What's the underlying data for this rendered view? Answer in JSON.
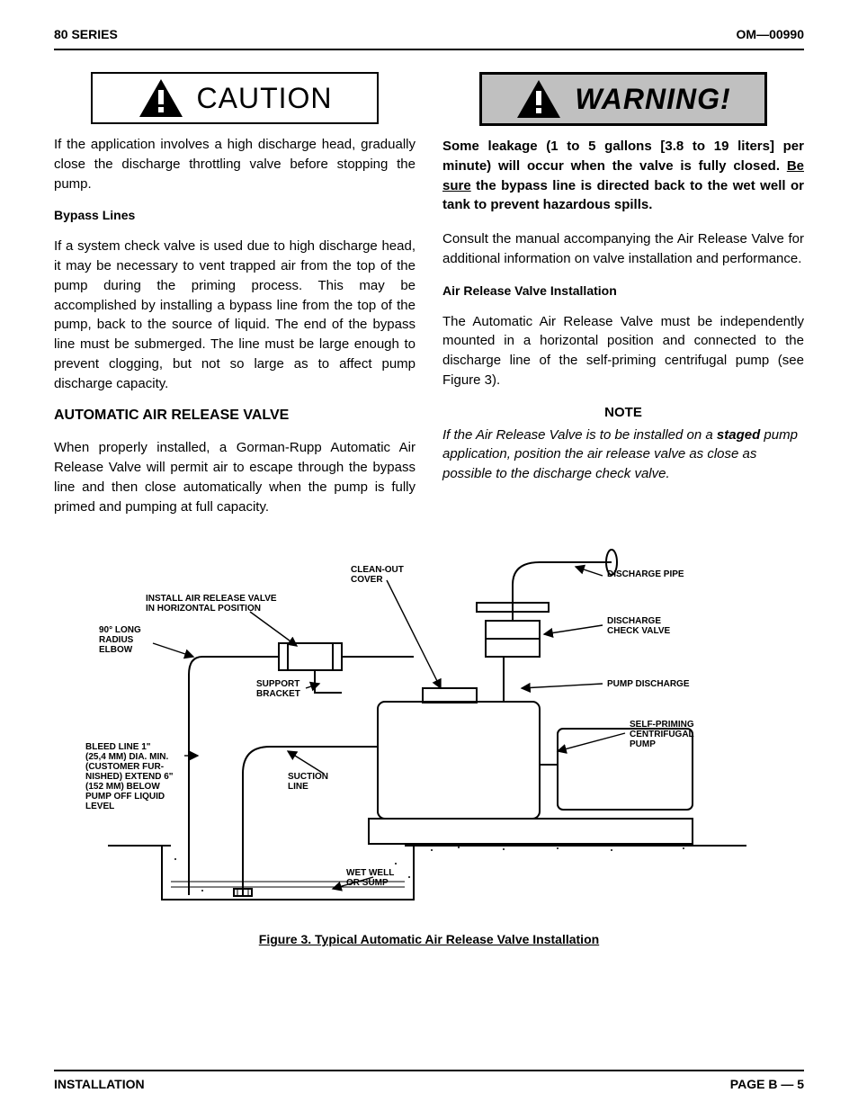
{
  "header": {
    "left": "80 SERIES",
    "right": "OM—00990"
  },
  "caution": {
    "title": "CAUTION",
    "text": "If the application involves a high discharge head, gradually close the discharge throttling valve before stopping the pump."
  },
  "bypass": {
    "heading": "Bypass Lines",
    "text": "If a system check valve is used due to high discharge head, it may be necessary to vent trapped air from the top of the pump during the priming process. This may be accomplished by installing a bypass line from the top of the pump, back to the source of liquid. The end of the bypass line must be submerged. The line must be large enough to prevent clogging, but not so large as to affect pump discharge capacity."
  },
  "aarv": {
    "heading": "AUTOMATIC AIR RELEASE VALVE",
    "text": "When properly installed, a Gorman-Rupp Automatic Air Release Valve will permit air to escape through the bypass line and then close automatically when the pump is fully primed and pumping at full capacity."
  },
  "warning": {
    "title": "WARNING!",
    "text_pre": "Some leakage (1 to 5 gallons [3.8 to 19 liters] per minute) will occur when the valve is fully closed. ",
    "text_underline": "Be sure",
    "text_post": " the bypass line is directed back to the wet well or tank to prevent hazardous spills.",
    "consult": "Consult the manual accompanying the Air Release Valve for additional information on valve installation and performance."
  },
  "install": {
    "heading": "Air Release Valve Installation",
    "text": "The Automatic Air Release Valve must be independently mounted in a horizontal position and connected to the discharge line of the self-priming centrifugal pump (see Figure 3)."
  },
  "note": {
    "heading": "NOTE",
    "pre": "If the Air Release Valve is to be installed on a ",
    "staged": "staged",
    "post": " pump application, position the air release valve as close as possible to the discharge check valve."
  },
  "figure": {
    "caption": "Figure 3. Typical Automatic Air Release Valve Installation",
    "labels": {
      "cleanout": "CLEAN-OUT\nCOVER",
      "install_arv": "INSTALL AIR RELEASE VALVE\nIN HORIZONTAL POSITION",
      "elbow": "90° LONG\nRADIUS\nELBOW",
      "support": "SUPPORT\nBRACKET",
      "bleed": "BLEED LINE 1\"\n(25,4 MM) DIA. MIN.\n(CUSTOMER FUR-\nNISHED) EXTEND 6\"\n(152 MM) BELOW\nPUMP OFF LIQUID\nLEVEL",
      "suction": "SUCTION\nLINE",
      "wetwell": "WET WELL\nOR SUMP",
      "discharge_pipe": "DISCHARGE PIPE",
      "discharge_check": "DISCHARGE\nCHECK VALVE",
      "pump_discharge": "PUMP DISCHARGE",
      "self_priming": "SELF-PRIMING\nCENTRIFUGAL\nPUMP"
    }
  },
  "footer": {
    "left": "INSTALLATION",
    "right": "PAGE B — 5"
  }
}
